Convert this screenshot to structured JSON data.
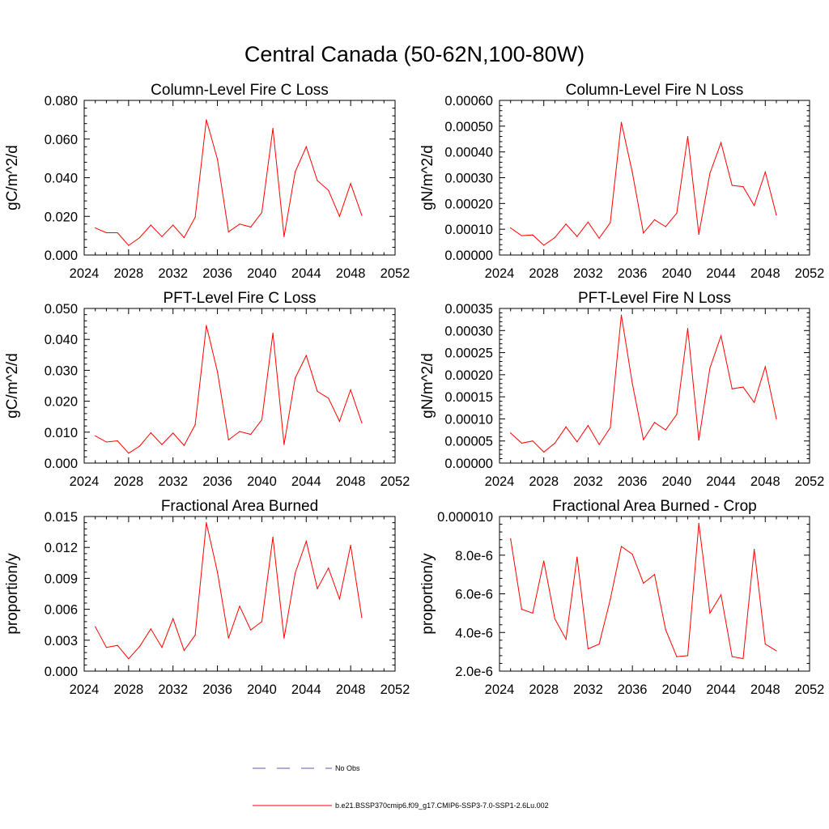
{
  "figure": {
    "title": "Central Canada (50-62N,100-80W)"
  },
  "legend": {
    "entries": [
      {
        "label": "No Obs",
        "color": "#5a5aa8",
        "style": "dashed"
      },
      {
        "label": "b.e21.BSSP370cmip6.f09_g17.CMIP6-SSP3-7.0-SSP1-2.6Lu.002",
        "color": "#ff0000",
        "style": "solid"
      }
    ]
  },
  "chart_data": [
    {
      "type": "line",
      "title": "Column-Level Fire C Loss",
      "ylabel": "gC/m^2/d",
      "xlim": [
        2024,
        2052
      ],
      "ylim": [
        0,
        0.08
      ],
      "x_ticks": [
        "2024",
        "2028",
        "2032",
        "2036",
        "2040",
        "2044",
        "2048",
        "2052"
      ],
      "y_ticks": [
        "0.000",
        "0.020",
        "0.040",
        "0.060",
        "0.080"
      ],
      "series": [
        {
          "color": "#ff0000",
          "x": [
            2025,
            2026,
            2027,
            2028,
            2029,
            2030,
            2031,
            2032,
            2033,
            2034,
            2035,
            2036,
            2037,
            2038,
            2039,
            2040,
            2041,
            2042,
            2043,
            2044,
            2045,
            2046,
            2047,
            2048,
            2049
          ],
          "values": [
            0.014,
            0.0115,
            0.0115,
            0.005,
            0.009,
            0.0155,
            0.0095,
            0.0155,
            0.009,
            0.0195,
            0.07,
            0.0495,
            0.012,
            0.016,
            0.0145,
            0.022,
            0.0655,
            0.0095,
            0.043,
            0.056,
            0.0385,
            0.0335,
            0.02,
            0.037,
            0.0205
          ]
        }
      ]
    },
    {
      "type": "line",
      "title": "Column-Level Fire N Loss",
      "ylabel": "gN/m^2/d",
      "xlim": [
        2024,
        2052
      ],
      "ylim": [
        0,
        0.0006
      ],
      "x_ticks": [
        "2024",
        "2028",
        "2032",
        "2036",
        "2040",
        "2044",
        "2048",
        "2052"
      ],
      "y_ticks": [
        "0.00000",
        "0.00010",
        "0.00020",
        "0.00030",
        "0.00040",
        "0.00050",
        "0.00060"
      ],
      "series": [
        {
          "color": "#ff0000",
          "x": [
            2025,
            2026,
            2027,
            2028,
            2029,
            2030,
            2031,
            2032,
            2033,
            2034,
            2035,
            2036,
            2037,
            2038,
            2039,
            2040,
            2041,
            2042,
            2043,
            2044,
            2045,
            2046,
            2047,
            2048,
            2049
          ],
          "values": [
            0.000105,
            7.5e-05,
            7.8e-05,
            3.8e-05,
            6.8e-05,
            0.00012,
            7.2e-05,
            0.000128,
            6.5e-05,
            0.000125,
            0.000515,
            0.00032,
            8.5e-05,
            0.000137,
            0.00011,
            0.000162,
            0.00046,
            8e-05,
            0.000317,
            0.000436,
            0.00027,
            0.000265,
            0.000192,
            0.000322,
            0.000155
          ]
        }
      ]
    },
    {
      "type": "line",
      "title": "PFT-Level Fire C Loss",
      "ylabel": "gC/m^2/d",
      "xlim": [
        2024,
        2052
      ],
      "ylim": [
        0,
        0.05
      ],
      "x_ticks": [
        "2024",
        "2028",
        "2032",
        "2036",
        "2040",
        "2044",
        "2048",
        "2052"
      ],
      "y_ticks": [
        "0.000",
        "0.010",
        "0.020",
        "0.030",
        "0.040",
        "0.050"
      ],
      "series": [
        {
          "color": "#ff0000",
          "x": [
            2025,
            2026,
            2027,
            2028,
            2029,
            2030,
            2031,
            2032,
            2033,
            2034,
            2035,
            2036,
            2037,
            2038,
            2039,
            2040,
            2041,
            2042,
            2043,
            2044,
            2045,
            2046,
            2047,
            2048,
            2049
          ],
          "values": [
            0.0088,
            0.0068,
            0.0072,
            0.0032,
            0.0055,
            0.0098,
            0.006,
            0.0097,
            0.0057,
            0.0124,
            0.0445,
            0.0295,
            0.0075,
            0.0102,
            0.0093,
            0.014,
            0.042,
            0.006,
            0.0275,
            0.0348,
            0.0232,
            0.021,
            0.0135,
            0.0237,
            0.013
          ]
        }
      ]
    },
    {
      "type": "line",
      "title": "PFT-Level Fire N Loss",
      "ylabel": "gN/m^2/d",
      "xlim": [
        2024,
        2052
      ],
      "ylim": [
        0,
        0.00035
      ],
      "x_ticks": [
        "2024",
        "2028",
        "2032",
        "2036",
        "2040",
        "2044",
        "2048",
        "2052"
      ],
      "y_ticks": [
        "0.00000",
        "0.00005",
        "0.00010",
        "0.00015",
        "0.00020",
        "0.00025",
        "0.00030",
        "0.00035"
      ],
      "series": [
        {
          "color": "#ff0000",
          "x": [
            2025,
            2026,
            2027,
            2028,
            2029,
            2030,
            2031,
            2032,
            2033,
            2034,
            2035,
            2036,
            2037,
            2038,
            2039,
            2040,
            2041,
            2042,
            2043,
            2044,
            2045,
            2046,
            2047,
            2048,
            2049
          ],
          "values": [
            6.8e-05,
            4.5e-05,
            5e-05,
            2.5e-05,
            4.5e-05,
            8.2e-05,
            4.8e-05,
            8.5e-05,
            4.2e-05,
            8e-05,
            0.000335,
            0.00018,
            5.3e-05,
            9.2e-05,
            7.5e-05,
            0.00011,
            0.000305,
            5.2e-05,
            0.000215,
            0.000288,
            0.000168,
            0.000172,
            0.000137,
            0.000218,
            0.0001
          ]
        }
      ]
    },
    {
      "type": "line",
      "title": "Fractional Area Burned",
      "ylabel": "proportion/y",
      "xlim": [
        2024,
        2052
      ],
      "ylim": [
        0,
        0.015
      ],
      "x_ticks": [
        "2024",
        "2028",
        "2032",
        "2036",
        "2040",
        "2044",
        "2048",
        "2052"
      ],
      "y_ticks": [
        "0.000",
        "0.003",
        "0.006",
        "0.009",
        "0.012",
        "0.015"
      ],
      "series": [
        {
          "color": "#ff0000",
          "x": [
            2025,
            2026,
            2027,
            2028,
            2029,
            2030,
            2031,
            2032,
            2033,
            2034,
            2035,
            2036,
            2037,
            2038,
            2039,
            2040,
            2041,
            2042,
            2043,
            2044,
            2045,
            2046,
            2047,
            2048,
            2049
          ],
          "values": [
            0.0043,
            0.0023,
            0.0025,
            0.0012,
            0.0024,
            0.0041,
            0.0023,
            0.0051,
            0.002,
            0.0035,
            0.0144,
            0.0096,
            0.0032,
            0.0063,
            0.004,
            0.0048,
            0.013,
            0.0032,
            0.0095,
            0.0126,
            0.008,
            0.01,
            0.007,
            0.0122,
            0.0052
          ]
        }
      ]
    },
    {
      "type": "line",
      "title": "Fractional Area Burned - Crop",
      "ylabel": "proportion/y",
      "xlim": [
        2024,
        2052
      ],
      "ylim": [
        2e-06,
        1e-05
      ],
      "x_ticks": [
        "2024",
        "2028",
        "2032",
        "2036",
        "2040",
        "2044",
        "2048",
        "2052"
      ],
      "y_ticks": [
        "2.0e-6",
        "4.0e-6",
        "6.0e-6",
        "8.0e-6",
        "0.000010"
      ],
      "series": [
        {
          "color": "#ff0000",
          "x": [
            2025,
            2026,
            2027,
            2028,
            2029,
            2030,
            2031,
            2032,
            2033,
            2034,
            2035,
            2036,
            2037,
            2038,
            2039,
            2040,
            2041,
            2042,
            2043,
            2044,
            2045,
            2046,
            2047,
            2048,
            2049
          ],
          "values": [
            8.85e-06,
            5.2e-06,
            5e-06,
            7.7e-06,
            4.7e-06,
            3.65e-06,
            7.9e-06,
            3.15e-06,
            3.4e-06,
            5.7e-06,
            8.45e-06,
            8.05e-06,
            6.55e-06,
            7e-06,
            4.15e-06,
            2.75e-06,
            2.8e-06,
            9.65e-06,
            5e-06,
            5.95e-06,
            2.75e-06,
            2.65e-06,
            8.3e-06,
            3.4e-06,
            3.05e-06
          ]
        }
      ]
    }
  ]
}
